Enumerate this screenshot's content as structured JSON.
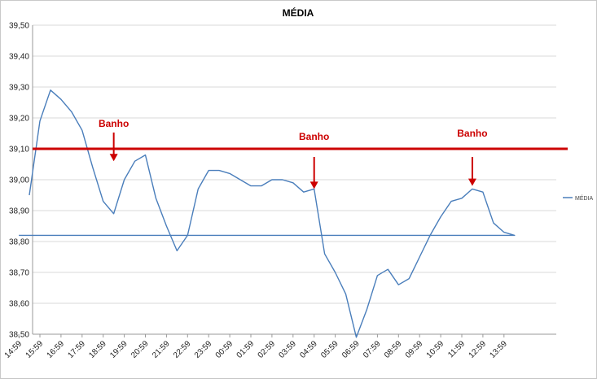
{
  "chart_data": {
    "type": "line",
    "title": "MÉDIA",
    "xlabel": "",
    "ylabel": "",
    "ylim": [
      38.5,
      39.5
    ],
    "yticks": [
      "38,50",
      "38,60",
      "38,70",
      "38,80",
      "38,90",
      "39,00",
      "39,10",
      "39,20",
      "39,30",
      "39,40",
      "39,50"
    ],
    "xticks": [
      "15:59",
      "16:59",
      "17:59",
      "18:59",
      "19:59",
      "20:59",
      "21:59",
      "22:59",
      "23:59",
      "00:59",
      "01:59",
      "02:59",
      "03:59",
      "04:59",
      "05:59",
      "06:59",
      "07:59",
      "08:59",
      "09:59",
      "10:59",
      "11:59",
      "12:59",
      "13:59",
      "14:59"
    ],
    "grid": "horizontal",
    "legend": "right",
    "series": [
      {
        "name": "MÉDIA",
        "color": "#4a7ebb",
        "points": [
          [
            "15:29",
            38.95
          ],
          [
            "15:59",
            39.19
          ],
          [
            "16:29",
            39.29
          ],
          [
            "16:59",
            39.26
          ],
          [
            "17:29",
            39.22
          ],
          [
            "17:59",
            39.16
          ],
          [
            "18:29",
            39.04
          ],
          [
            "18:59",
            38.93
          ],
          [
            "19:29",
            38.89
          ],
          [
            "19:59",
            39.0
          ],
          [
            "20:29",
            39.06
          ],
          [
            "20:59",
            39.08
          ],
          [
            "21:29",
            38.94
          ],
          [
            "21:59",
            38.85
          ],
          [
            "22:29",
            38.77
          ],
          [
            "22:59",
            38.82
          ],
          [
            "23:29",
            38.97
          ],
          [
            "23:59",
            39.03
          ],
          [
            "00:29",
            39.03
          ],
          [
            "00:59",
            39.02
          ],
          [
            "01:29",
            39.0
          ],
          [
            "01:59",
            38.98
          ],
          [
            "02:29",
            38.98
          ],
          [
            "02:59",
            39.0
          ],
          [
            "03:29",
            39.0
          ],
          [
            "03:59",
            38.99
          ],
          [
            "04:29",
            38.96
          ],
          [
            "04:59",
            38.97
          ],
          [
            "05:29",
            38.76
          ],
          [
            "05:59",
            38.7
          ],
          [
            "06:29",
            38.63
          ],
          [
            "06:59",
            38.49
          ],
          [
            "07:29",
            38.58
          ],
          [
            "07:59",
            38.69
          ],
          [
            "08:29",
            38.71
          ],
          [
            "08:59",
            38.66
          ],
          [
            "09:29",
            38.68
          ],
          [
            "09:59",
            38.75
          ],
          [
            "10:29",
            38.82
          ],
          [
            "10:59",
            38.88
          ],
          [
            "11:29",
            38.93
          ],
          [
            "11:59",
            38.94
          ],
          [
            "12:29",
            38.97
          ],
          [
            "12:59",
            38.96
          ],
          [
            "13:29",
            38.86
          ],
          [
            "13:59",
            38.83
          ],
          [
            "14:29",
            38.82
          ],
          [
            "14:59",
            38.82
          ]
        ]
      }
    ],
    "reference_line": {
      "value": 39.1,
      "color": "#cc0000"
    },
    "annotations": [
      {
        "text": "Banho",
        "at": "19:29",
        "arrow_tip": 39.06,
        "color": "#cc0000"
      },
      {
        "text": "Banho",
        "at": "04:59",
        "arrow_tip": 38.97,
        "color": "#cc0000"
      },
      {
        "text": "Banho",
        "at": "12:29",
        "arrow_tip": 38.98,
        "color": "#cc0000"
      }
    ]
  }
}
